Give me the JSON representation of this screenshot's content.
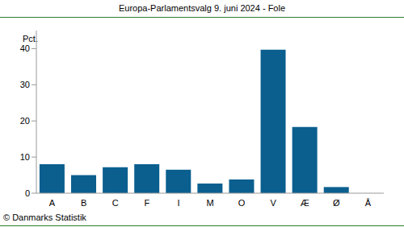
{
  "chart_data": {
    "type": "bar",
    "title": "Europa-Parlamentsvalg 9. juni 2024 - Fole",
    "ylabel": "Pct.",
    "annotation": "© Danmarks Statistik",
    "categories": [
      "A",
      "B",
      "C",
      "F",
      "I",
      "M",
      "O",
      "V",
      "Æ",
      "Ø",
      "Å"
    ],
    "values": [
      8.0,
      5.0,
      7.2,
      8.0,
      6.5,
      2.7,
      3.8,
      39.7,
      18.3,
      1.7,
      0
    ],
    "color": "#0a5f8f",
    "ylim": [
      0,
      45
    ],
    "yticks": [
      0,
      10,
      20,
      30,
      40
    ],
    "grid": false
  }
}
